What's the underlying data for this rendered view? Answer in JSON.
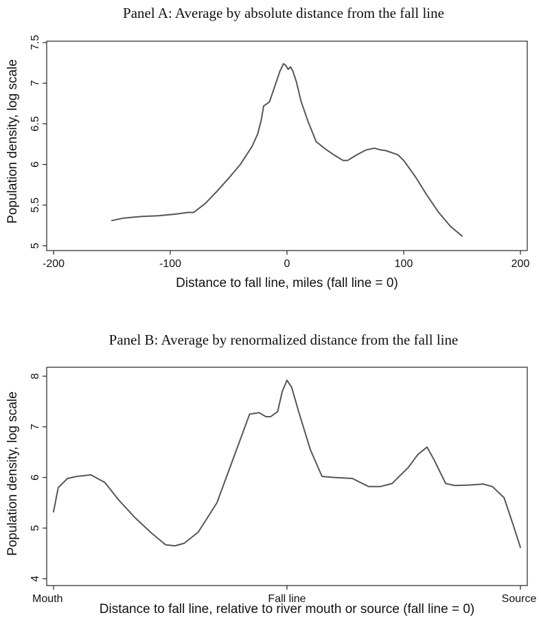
{
  "chart_data": [
    {
      "type": "line",
      "title": "Panel A: Average by absolute distance from the fall line",
      "xlabel": "Distance to fall line, miles (fall line = 0)",
      "ylabel": "Population density, log scale",
      "xlim": [
        -200,
        200
      ],
      "ylim": [
        5,
        7.5
      ],
      "x_ticks": [
        -200,
        -100,
        0,
        100,
        200
      ],
      "x_tick_labels": [
        "-200",
        "-100",
        "0",
        "100",
        "200"
      ],
      "y_ticks": [
        5,
        5.5,
        6,
        6.5,
        7,
        7.5
      ],
      "y_tick_labels": [
        "5",
        "5.5",
        "6",
        "6.5",
        "7",
        "7.5"
      ],
      "grid": false,
      "series": [
        {
          "x": [
            -150,
            -140,
            -125,
            -110,
            -95,
            -85,
            -80,
            -70,
            -60,
            -50,
            -40,
            -30,
            -25,
            -22,
            -20,
            -15,
            -10,
            -6,
            -3,
            -1,
            1,
            3,
            5,
            8,
            12,
            18,
            25,
            32,
            40,
            48,
            52,
            60,
            68,
            75,
            80,
            85,
            95,
            100,
            110,
            120,
            130,
            140,
            150
          ],
          "y": [
            5.31,
            5.34,
            5.36,
            5.37,
            5.39,
            5.41,
            5.41,
            5.52,
            5.67,
            5.83,
            6.0,
            6.22,
            6.38,
            6.55,
            6.72,
            6.77,
            6.98,
            7.15,
            7.24,
            7.22,
            7.17,
            7.2,
            7.15,
            7.02,
            6.78,
            6.53,
            6.28,
            6.2,
            6.12,
            6.05,
            6.05,
            6.12,
            6.18,
            6.2,
            6.18,
            6.17,
            6.12,
            6.05,
            5.85,
            5.62,
            5.41,
            5.24,
            5.12
          ]
        }
      ]
    },
    {
      "type": "line",
      "title": "Panel B: Average by renormalized distance from the fall line",
      "xlabel": "Distance to fall line, relative to river mouth or source (fall line = 0)",
      "ylabel": "Population density, log scale",
      "xlim": [
        -1,
        1
      ],
      "ylim": [
        4,
        8
      ],
      "x_ticks": [
        -1,
        0,
        1
      ],
      "x_tick_labels": [
        "Mouth",
        "Fall line",
        "Source"
      ],
      "y_ticks": [
        4,
        5,
        6,
        7,
        8
      ],
      "y_tick_labels": [
        "4",
        "5",
        "6",
        "7",
        "8"
      ],
      "grid": false,
      "series": [
        {
          "x": [
            -1.0,
            -0.98,
            -0.94,
            -0.9,
            -0.84,
            -0.78,
            -0.72,
            -0.65,
            -0.58,
            -0.52,
            -0.48,
            -0.44,
            -0.38,
            -0.3,
            -0.22,
            -0.16,
            -0.12,
            -0.09,
            -0.07,
            -0.04,
            -0.02,
            0.0,
            0.02,
            0.05,
            0.1,
            0.15,
            0.2,
            0.28,
            0.35,
            0.4,
            0.45,
            0.52,
            0.56,
            0.6,
            0.63,
            0.68,
            0.72,
            0.78,
            0.84,
            0.88,
            0.93,
            0.97,
            1.0
          ],
          "y": [
            5.32,
            5.8,
            5.98,
            6.02,
            6.05,
            5.9,
            5.55,
            5.2,
            4.9,
            4.67,
            4.65,
            4.7,
            4.92,
            5.5,
            6.5,
            7.25,
            7.28,
            7.2,
            7.2,
            7.3,
            7.7,
            7.92,
            7.78,
            7.3,
            6.55,
            6.02,
            6.0,
            5.98,
            5.82,
            5.82,
            5.88,
            6.2,
            6.45,
            6.6,
            6.35,
            5.88,
            5.84,
            5.85,
            5.87,
            5.82,
            5.6,
            5.05,
            4.62
          ]
        }
      ]
    }
  ]
}
